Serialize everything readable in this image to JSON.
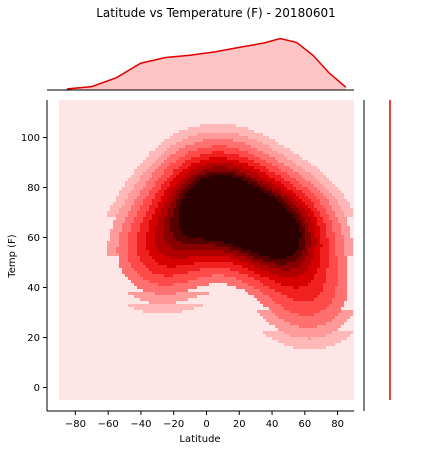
{
  "chart_data": {
    "type": "kde-jointplot",
    "title": "Latitude vs Temperature (F) - 20180601",
    "xlabel": "Latitude",
    "ylabel": "Temp (F)",
    "xlim": [
      -90,
      90
    ],
    "ylim": [
      -5,
      115
    ],
    "xticks": [
      -80,
      -60,
      -40,
      -20,
      0,
      20,
      40,
      60,
      80
    ],
    "yticks": [
      0,
      20,
      40,
      60,
      80,
      100
    ],
    "fill_color": "#e00000",
    "background_color": "#ffe6e6",
    "grid": false,
    "density_components": [
      {
        "x": 5,
        "y": 79,
        "weight": 1.0
      },
      {
        "x": 45,
        "y": 61,
        "weight": 0.9
      },
      {
        "x": 62,
        "y": 37,
        "weight": 0.45
      },
      {
        "x": -30,
        "y": 52,
        "weight": 0.45
      },
      {
        "x": 30,
        "y": 68,
        "weight": 0.55
      },
      {
        "x": -15,
        "y": 65,
        "weight": 0.5
      }
    ],
    "marginal_x": {
      "x": [
        -85,
        -70,
        -55,
        -40,
        -25,
        -10,
        5,
        20,
        35,
        45,
        55,
        65,
        75,
        85
      ],
      "density": [
        0.02,
        0.06,
        0.22,
        0.48,
        0.58,
        0.62,
        0.68,
        0.76,
        0.84,
        0.92,
        0.85,
        0.62,
        0.3,
        0.05
      ]
    },
    "marginal_y": {
      "range": [
        0,
        115
      ],
      "note_visible": false
    }
  }
}
